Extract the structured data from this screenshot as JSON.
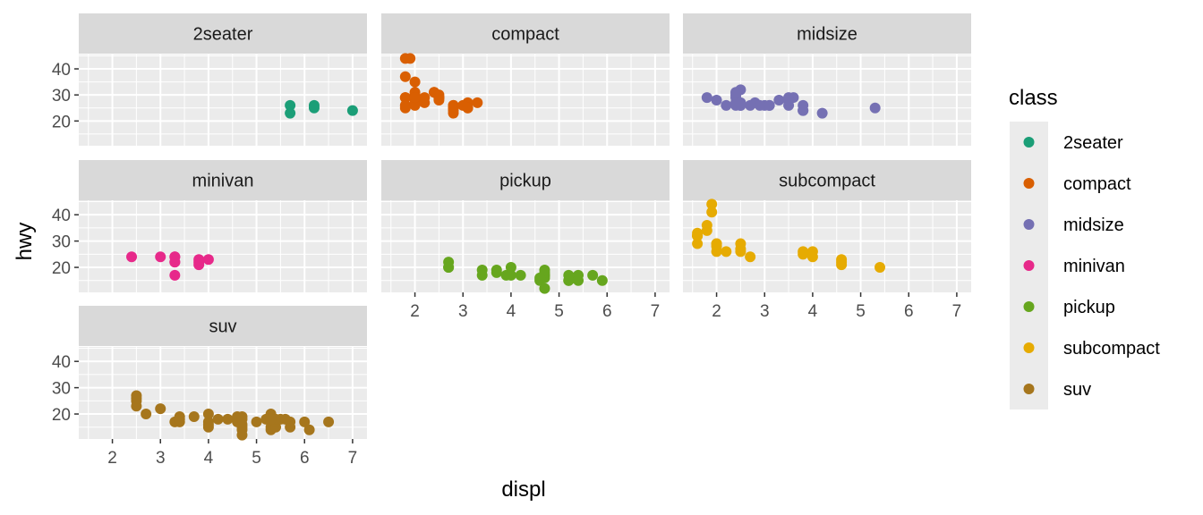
{
  "chart_data": {
    "type": "scatter",
    "facet_by": "class",
    "xlabel": "displ",
    "ylabel": "hwy",
    "xlim": [
      1.3,
      7.3
    ],
    "ylim": [
      10.5,
      45.5
    ],
    "x_ticks": [
      2,
      3,
      4,
      5,
      6,
      7
    ],
    "y_ticks": [
      20,
      30,
      40
    ],
    "grid": true,
    "legend": {
      "title": "class",
      "placement": "right"
    },
    "panels": [
      {
        "name": "2seater",
        "color": "#1B9E77",
        "points": [
          [
            5.7,
            26
          ],
          [
            5.7,
            23
          ],
          [
            6.2,
            26
          ],
          [
            6.2,
            25
          ],
          [
            7.0,
            24
          ]
        ]
      },
      {
        "name": "compact",
        "color": "#D95F02",
        "points": [
          [
            1.8,
            29
          ],
          [
            1.8,
            29
          ],
          [
            2.0,
            31
          ],
          [
            2.0,
            30
          ],
          [
            2.8,
            26
          ],
          [
            2.8,
            26
          ],
          [
            3.1,
            27
          ],
          [
            1.8,
            26
          ],
          [
            1.8,
            25
          ],
          [
            2.0,
            28
          ],
          [
            2.0,
            27
          ],
          [
            2.8,
            25
          ],
          [
            2.8,
            25
          ],
          [
            3.1,
            25
          ],
          [
            3.1,
            25
          ],
          [
            2.2,
            27
          ],
          [
            2.2,
            29
          ],
          [
            2.4,
            31
          ],
          [
            2.4,
            31
          ],
          [
            3.0,
            26
          ],
          [
            1.9,
            44
          ],
          [
            2.0,
            29
          ],
          [
            2.0,
            26
          ],
          [
            2.0,
            29
          ],
          [
            2.0,
            29
          ],
          [
            2.5,
            29
          ],
          [
            2.5,
            29
          ],
          [
            2.8,
            23
          ],
          [
            2.8,
            24
          ],
          [
            1.8,
            44
          ],
          [
            1.8,
            37
          ],
          [
            2.0,
            35
          ],
          [
            2.5,
            30
          ],
          [
            2.5,
            28
          ],
          [
            2.5,
            29
          ],
          [
            3.3,
            27
          ]
        ]
      },
      {
        "name": "midsize",
        "color": "#7570B3",
        "points": [
          [
            2.4,
            27
          ],
          [
            2.4,
            30
          ],
          [
            2.5,
            32
          ],
          [
            2.5,
            26
          ],
          [
            3.1,
            26
          ],
          [
            3.5,
            26
          ],
          [
            3.5,
            29
          ],
          [
            3.8,
            26
          ],
          [
            3.8,
            24
          ],
          [
            3.8,
            24
          ],
          [
            5.3,
            25
          ],
          [
            2.4,
            26
          ],
          [
            2.4,
            29
          ],
          [
            3.1,
            26
          ],
          [
            3.5,
            28
          ],
          [
            3.6,
            29
          ],
          [
            1.8,
            29
          ],
          [
            2.0,
            28
          ],
          [
            2.4,
            31
          ],
          [
            2.5,
            26
          ],
          [
            2.8,
            27
          ],
          [
            3.0,
            26
          ],
          [
            3.3,
            28
          ],
          [
            3.5,
            28
          ],
          [
            4.2,
            23
          ],
          [
            2.2,
            26
          ],
          [
            2.5,
            27
          ],
          [
            2.7,
            26
          ],
          [
            2.9,
            26
          ]
        ]
      },
      {
        "name": "minivan",
        "color": "#E7298A",
        "points": [
          [
            2.4,
            24
          ],
          [
            3.0,
            24
          ],
          [
            3.3,
            22
          ],
          [
            3.3,
            22
          ],
          [
            3.3,
            24
          ],
          [
            3.3,
            24
          ],
          [
            3.3,
            17
          ],
          [
            3.8,
            22
          ],
          [
            3.8,
            21
          ],
          [
            3.8,
            23
          ],
          [
            4.0,
            23
          ]
        ]
      },
      {
        "name": "pickup",
        "color": "#66A61E",
        "points": [
          [
            2.7,
            20
          ],
          [
            2.7,
            20
          ],
          [
            2.7,
            22
          ],
          [
            3.4,
            17
          ],
          [
            3.4,
            19
          ],
          [
            3.7,
            18
          ],
          [
            3.7,
            19
          ],
          [
            3.9,
            17
          ],
          [
            4.0,
            17
          ],
          [
            4.0,
            20
          ],
          [
            4.2,
            17
          ],
          [
            4.6,
            15
          ],
          [
            4.7,
            17
          ],
          [
            4.7,
            16
          ],
          [
            4.7,
            12
          ],
          [
            4.7,
            19
          ],
          [
            4.7,
            17
          ],
          [
            5.2,
            17
          ],
          [
            5.2,
            15
          ],
          [
            5.3,
            16
          ],
          [
            5.4,
            17
          ],
          [
            5.4,
            15
          ],
          [
            5.7,
            17
          ],
          [
            5.9,
            15
          ],
          [
            4.7,
            18
          ],
          [
            4.6,
            16
          ],
          [
            5.2,
            15
          ]
        ]
      },
      {
        "name": "subcompact",
        "color": "#E6AB02",
        "points": [
          [
            1.6,
            33
          ],
          [
            1.6,
            32
          ],
          [
            1.6,
            32
          ],
          [
            1.6,
            29
          ],
          [
            1.6,
            32
          ],
          [
            1.8,
            34
          ],
          [
            1.8,
            36
          ],
          [
            1.9,
            44
          ],
          [
            1.9,
            41
          ],
          [
            2.0,
            29
          ],
          [
            2.0,
            26
          ],
          [
            2.0,
            28
          ],
          [
            2.0,
            29
          ],
          [
            2.2,
            26
          ],
          [
            2.5,
            26
          ],
          [
            2.5,
            29
          ],
          [
            2.5,
            27
          ],
          [
            2.7,
            24
          ],
          [
            3.8,
            26
          ],
          [
            3.8,
            25
          ],
          [
            4.0,
            26
          ],
          [
            4.0,
            24
          ],
          [
            4.6,
            23
          ],
          [
            4.6,
            21
          ],
          [
            4.6,
            22
          ],
          [
            5.4,
            20
          ]
        ]
      },
      {
        "name": "suv",
        "color": "#A6761D",
        "points": [
          [
            2.5,
            23
          ],
          [
            2.5,
            25
          ],
          [
            2.5,
            26
          ],
          [
            2.5,
            27
          ],
          [
            2.7,
            20
          ],
          [
            3.0,
            22
          ],
          [
            3.3,
            17
          ],
          [
            3.4,
            17
          ],
          [
            3.4,
            19
          ],
          [
            3.7,
            19
          ],
          [
            4.0,
            17
          ],
          [
            4.0,
            20
          ],
          [
            4.0,
            15
          ],
          [
            4.2,
            18
          ],
          [
            4.4,
            18
          ],
          [
            4.6,
            17
          ],
          [
            4.7,
            14
          ],
          [
            4.7,
            16
          ],
          [
            4.7,
            12
          ],
          [
            4.7,
            15
          ],
          [
            4.7,
            19
          ],
          [
            5.0,
            17
          ],
          [
            5.2,
            18
          ],
          [
            5.3,
            14
          ],
          [
            5.3,
            15
          ],
          [
            5.3,
            20
          ],
          [
            5.4,
            15
          ],
          [
            5.4,
            17
          ],
          [
            5.5,
            18
          ],
          [
            5.6,
            18
          ],
          [
            5.7,
            17
          ],
          [
            5.7,
            15
          ],
          [
            6.0,
            17
          ],
          [
            6.1,
            14
          ],
          [
            6.5,
            17
          ],
          [
            5.4,
            18
          ],
          [
            4.6,
            19
          ],
          [
            5.3,
            18
          ],
          [
            3.4,
            18
          ],
          [
            4.0,
            16
          ],
          [
            4.7,
            18
          ]
        ]
      }
    ]
  }
}
